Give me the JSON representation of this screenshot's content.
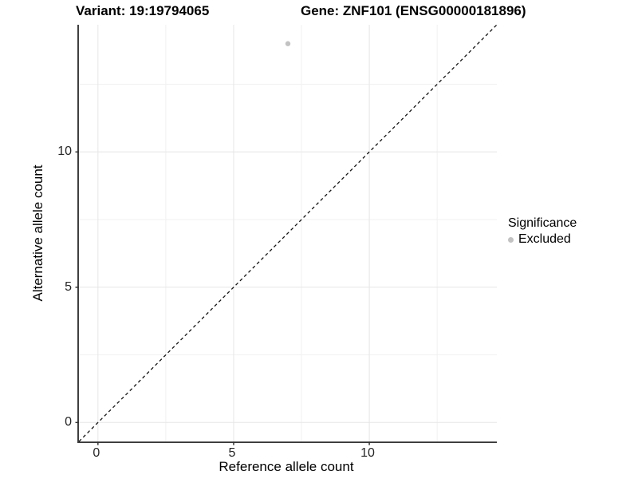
{
  "titles": {
    "variant": "Variant: 19:19794065",
    "gene": "Gene: ZNF101 (ENSG00000181896)"
  },
  "chart_data": {
    "type": "scatter",
    "xlabel": "Reference allele count",
    "ylabel": "Alternative allele count",
    "xlim": [
      -0.7,
      14.7
    ],
    "ylim": [
      -0.7,
      14.7
    ],
    "xticks": [
      0,
      5,
      10
    ],
    "yticks": [
      0,
      5,
      10
    ],
    "minor_ticks": [
      2.5,
      7.5,
      12.5
    ],
    "grid": "major and minor gridlines, light gray, on white background",
    "points": [
      {
        "x": 7,
        "y": 14,
        "significance": "Excluded"
      }
    ],
    "identity_line": {
      "style": "dashed",
      "equation": "y = x",
      "color": "#141414"
    },
    "legend": {
      "title": "Significance",
      "position": "right",
      "entries": [
        {
          "label": "Excluded",
          "color": "#c2c2c2"
        }
      ]
    },
    "colors": {
      "point_excluded": "#c2c2c2",
      "grid_major": "#e6e6e6",
      "grid_minor": "#f0f0f0",
      "axis_line": "#3f3f3f",
      "tick_mark": "#333333"
    }
  }
}
